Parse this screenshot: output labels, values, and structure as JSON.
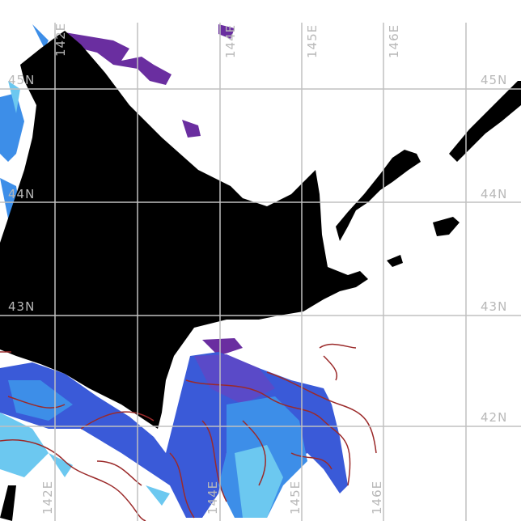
{
  "map": {
    "lat_labels": [
      "45N",
      "44N",
      "43N",
      "42N"
    ],
    "lon_labels_top": [
      "142E",
      "144E",
      "145E",
      "146E"
    ],
    "lon_labels_bottom": [
      "142E",
      "144E",
      "145E",
      "146E"
    ],
    "colors": {
      "land": "#000000",
      "grid": "#c0c0c0",
      "contour": "#9b2a2a",
      "purple": "#6a2ea0",
      "blue": "#3a5ad8",
      "mid_blue": "#3d8ee8",
      "light_blue": "#6cc8f0"
    }
  }
}
